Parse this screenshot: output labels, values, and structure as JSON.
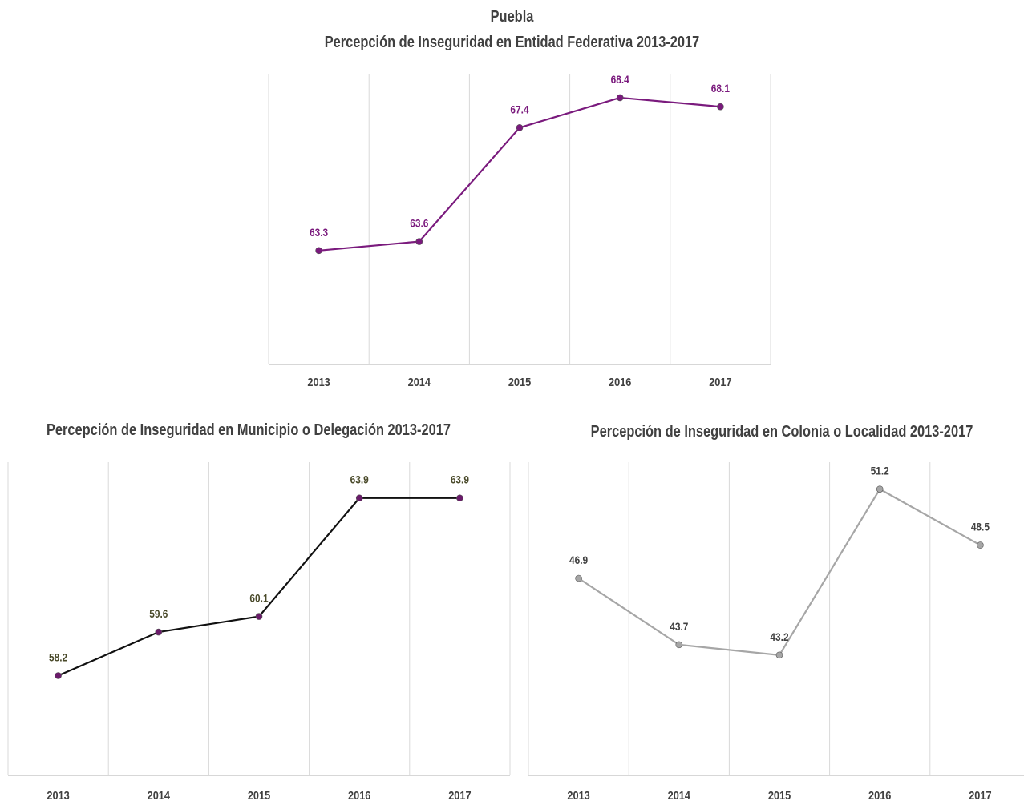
{
  "chart_data": [
    {
      "type": "line",
      "title": "Puebla",
      "subtitle": "Percepción de Inseguridad en Entidad Federativa  2013-2017",
      "categories": [
        "2013",
        "2014",
        "2015",
        "2016",
        "2017"
      ],
      "values": [
        63.3,
        63.6,
        67.4,
        68.4,
        68.1
      ],
      "labels": [
        "63.3",
        "63.6",
        "67.4",
        "68.4",
        "68.1"
      ],
      "ylim": [
        59.5,
        69.2
      ],
      "grid": "vertical",
      "line_color": "#7a1a7d",
      "marker_color": "#7a1a7d",
      "label_color": "#7a1a7d"
    },
    {
      "type": "line",
      "title": "Percepción de Inseguridad en Municipio o Delegación  2013-2017",
      "categories": [
        "2013",
        "2014",
        "2015",
        "2016",
        "2017"
      ],
      "values": [
        58.2,
        59.6,
        60.1,
        63.9,
        63.9
      ],
      "labels": [
        "58.2",
        "59.6",
        "60.1",
        "63.9",
        "63.9"
      ],
      "ylim": [
        55.0,
        65.05
      ],
      "grid": "vertical",
      "line_color": "#111111",
      "marker_color": "#6a1b6a",
      "label_color": "#4a4a2a"
    },
    {
      "type": "line",
      "title": "Percepción de Inseguridad en Colonia o Localidad  2013-2017",
      "categories": [
        "2013",
        "2014",
        "2015",
        "2016",
        "2017"
      ],
      "values": [
        46.9,
        43.7,
        43.2,
        51.2,
        48.5
      ],
      "labels": [
        "46.9",
        "43.7",
        "43.2",
        "51.2",
        "48.5"
      ],
      "ylim": [
        37.4,
        52.5
      ],
      "grid": "vertical",
      "line_color": "#a6a6a6",
      "marker_color": "#a6a6a6",
      "label_color": "#404040"
    }
  ]
}
